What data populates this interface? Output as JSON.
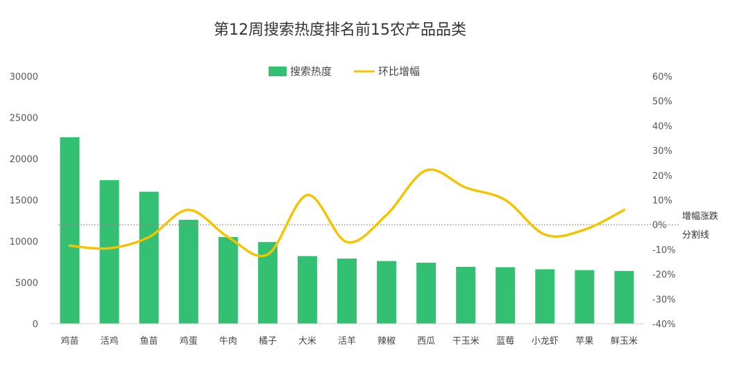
{
  "chart_data": {
    "type": "bar",
    "title": "第12周搜索热度排名前15农产品品类",
    "categories": [
      "鸡苗",
      "活鸡",
      "鱼苗",
      "鸡蛋",
      "牛肉",
      "橘子",
      "大米",
      "活羊",
      "辣椒",
      "西瓜",
      "干玉米",
      "蓝莓",
      "小龙虾",
      "苹果",
      "鲜玉米"
    ],
    "series": [
      {
        "name": "搜索热度",
        "type": "bar",
        "axis": "left",
        "color": "#33c072",
        "values": [
          22600,
          17400,
          16000,
          12600,
          10500,
          9900,
          8200,
          7900,
          7600,
          7400,
          6900,
          6850,
          6600,
          6500,
          6400
        ]
      },
      {
        "name": "环比增幅",
        "type": "line",
        "axis": "right",
        "color": "#f5c400",
        "values": [
          -8.5,
          -9.5,
          -5,
          6,
          -5,
          -12,
          12,
          -7,
          4,
          22,
          15,
          10,
          -4,
          -2,
          6
        ]
      }
    ],
    "y_left": {
      "min": 0,
      "max": 30000,
      "step": 5000
    },
    "y_right": {
      "min": -40,
      "max": 60,
      "step": 10,
      "unit": "%"
    },
    "reference_line": {
      "value": 0,
      "axis": "right",
      "label_line1": "增幅涨跌",
      "label_line2": "分割线"
    },
    "legend_position": "top-center",
    "grid": false
  }
}
